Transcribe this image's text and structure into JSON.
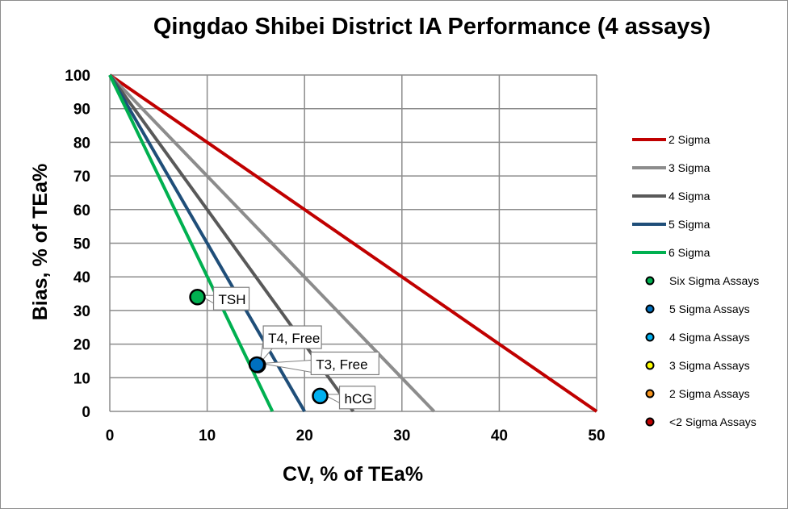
{
  "chart_data": {
    "type": "scatter",
    "title": "Qingdao Shibei District IA Performance (4 assays)",
    "xlabel": "CV, % of TEa%",
    "ylabel": "Bias, % of TEa%",
    "xlim": [
      0,
      50
    ],
    "ylim": [
      0,
      100
    ],
    "xticks": [
      0,
      10,
      20,
      30,
      40,
      50
    ],
    "yticks": [
      0,
      10,
      20,
      30,
      40,
      50,
      60,
      70,
      80,
      90,
      100
    ],
    "grid": true,
    "legend_position": "right",
    "sigma_lines": [
      {
        "name": "2 Sigma",
        "color": "#c00000",
        "x_intercept": 50
      },
      {
        "name": "3 Sigma",
        "color": "#8c8c8c",
        "x_intercept": 33.3
      },
      {
        "name": "4 Sigma",
        "color": "#595959",
        "x_intercept": 25
      },
      {
        "name": "5 Sigma",
        "color": "#1f4e79",
        "x_intercept": 20
      },
      {
        "name": "6 Sigma",
        "color": "#00b050",
        "x_intercept": 16.7
      }
    ],
    "marker_legend": [
      {
        "name": "Six Sigma Assays",
        "color": "#00b050"
      },
      {
        "name": "5 Sigma Assays",
        "color": "#0070c0"
      },
      {
        "name": "4 Sigma Assays",
        "color": "#00b0f0"
      },
      {
        "name": "3 Sigma Assays",
        "color": "#ffff00"
      },
      {
        "name": "2 Sigma Assays",
        "color": "#f7941d"
      },
      {
        "name": "<2 Sigma Assays",
        "color": "#c00000"
      }
    ],
    "points": [
      {
        "label": "TSH",
        "x": 9.0,
        "y": 34,
        "color": "#00b050"
      },
      {
        "label": "T3, Free",
        "x": 15.2,
        "y": 13.8,
        "color": "#0070c0"
      },
      {
        "label": "T4, Free",
        "x": 15.1,
        "y": 13.9,
        "color": "#0070c0"
      },
      {
        "label": "hCG",
        "x": 21.6,
        "y": 4.6,
        "color": "#00b0f0"
      }
    ]
  }
}
